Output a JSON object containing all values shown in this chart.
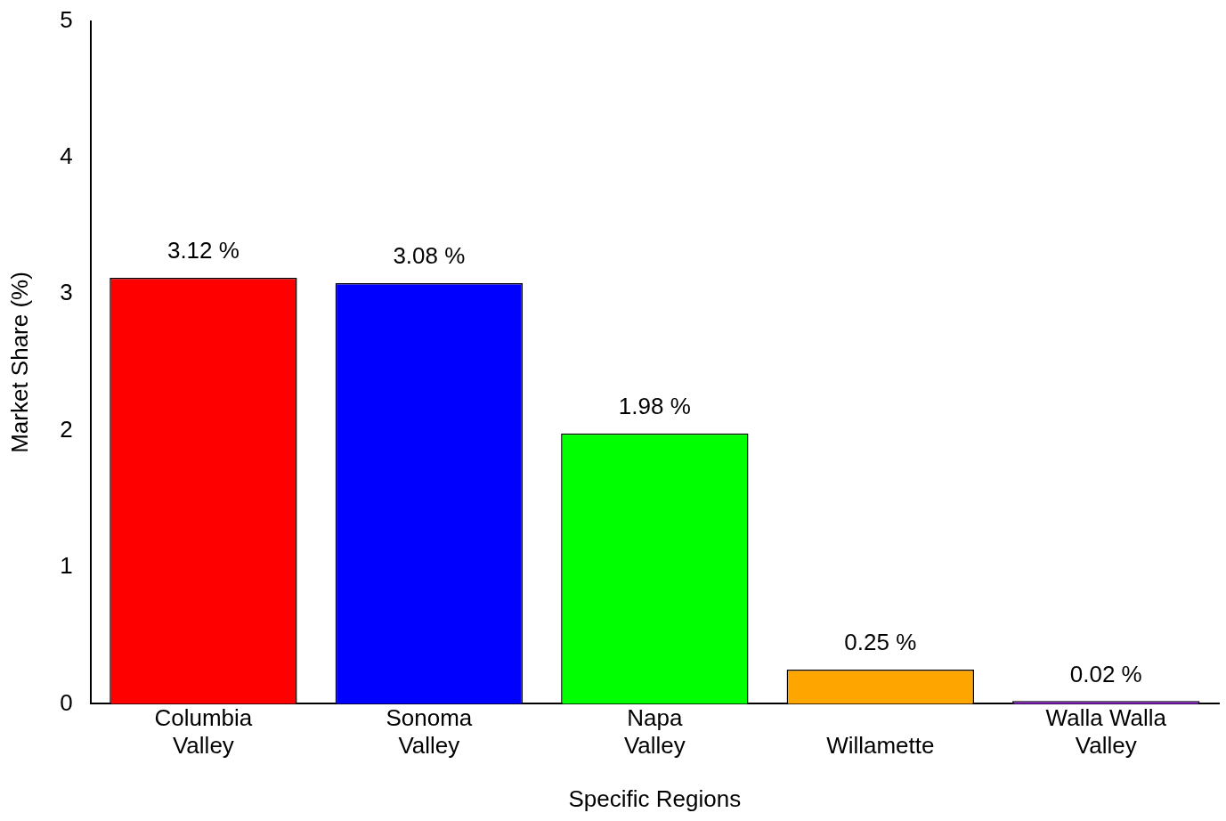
{
  "chart_data": {
    "type": "bar",
    "xlabel": "Specific Regions",
    "ylabel": "Market Share (%)",
    "categories": [
      "Columbia\nValley",
      "Sonoma\nValley",
      "Napa\nValley",
      "Willamette",
      "Walla Walla\nValley"
    ],
    "values": [
      3.12,
      3.08,
      1.98,
      0.25,
      0.02
    ],
    "colors": [
      "#ff0000",
      "#0000ff",
      "#00ff00",
      "#ffa500",
      "#a020f0"
    ],
    "value_labels": [
      "3.12 %",
      "3.08 %",
      "1.98 %",
      "0.25 %",
      "0.02 %"
    ],
    "ylim": [
      0,
      5
    ],
    "yticks": [
      0,
      1,
      2,
      3,
      4,
      5
    ],
    "grid": false,
    "legend": false
  }
}
